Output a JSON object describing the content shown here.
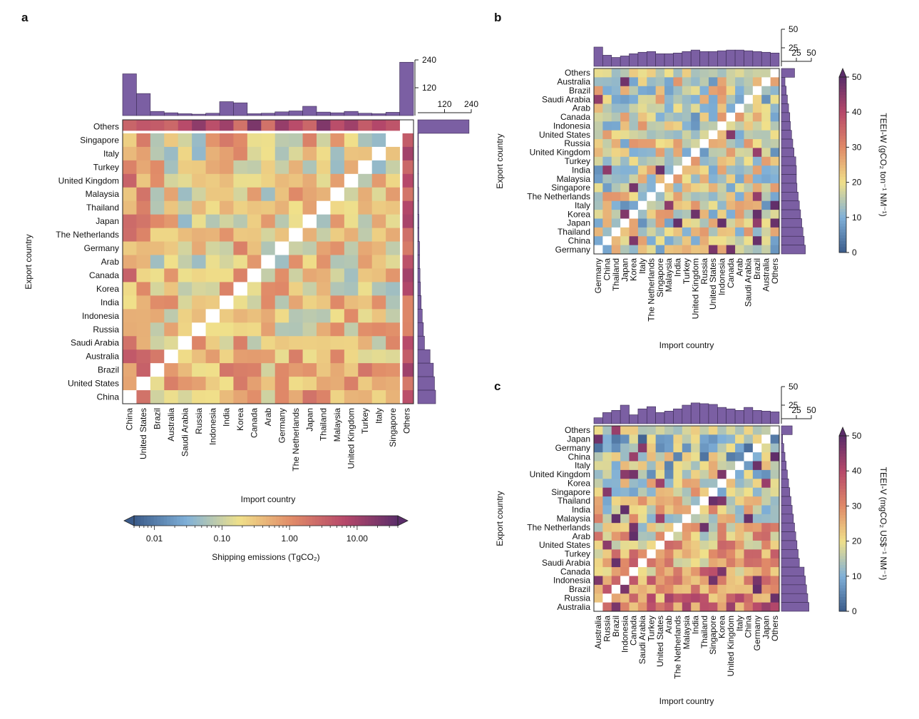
{
  "colors": {
    "scale": [
      "#3b5b8a",
      "#7fb0d8",
      "#f0e08a",
      "#e08a68",
      "#b6486a",
      "#5b2d6a"
    ],
    "marginal_bar": "#7b5fa3",
    "marginal_bar_stroke": "#3a2a52"
  },
  "chart_data": [
    {
      "panel_label": "a",
      "type": "heatmap",
      "log_color_scale": true,
      "color_range": [
        0.005,
        40
      ],
      "columns": [
        "China",
        "United States",
        "Brazil",
        "Australia",
        "Saudi Arabia",
        "Russia",
        "Indonesia",
        "India",
        "Korea",
        "Canada",
        "Arab",
        "Germany",
        "The Netherlands",
        "Japan",
        "Thailand",
        "Malaysia",
        "United Kingdom",
        "Turkey",
        "Italy",
        "Singapore",
        "Others"
      ],
      "rows": [
        "Others",
        "Singapore",
        "Italy",
        "Turkey",
        "United Kingdom",
        "Malaysia",
        "Thailand",
        "Japan",
        "The Netherlands",
        "Germany",
        "Arab",
        "Canada",
        "Korea",
        "India",
        "Indonesia",
        "Russia",
        "Saudi Arabia",
        "Australia",
        "Brazil",
        "United States",
        "China"
      ],
      "xlabel": "Import country",
      "ylabel": "Export country",
      "top_marginal": {
        "ticks": [
          120,
          240
        ],
        "range": [
          0,
          240
        ],
        "values": [
          180,
          95,
          18,
          12,
          8,
          6,
          10,
          60,
          55,
          8,
          10,
          16,
          20,
          40,
          15,
          12,
          18,
          10,
          8,
          14,
          230
        ]
      },
      "right_marginal": {
        "ticks": [
          120,
          240
        ],
        "range": [
          0,
          240
        ],
        "values": [
          230,
          3,
          3,
          3,
          3,
          4,
          4,
          5,
          5,
          8,
          8,
          10,
          12,
          15,
          20,
          25,
          30,
          55,
          70,
          75,
          80
        ]
      },
      "colorbar": {
        "title": "Shipping emissions (TgCO₂)",
        "tick_labels": [
          "0.01",
          "0.10",
          "1.00",
          "10.00"
        ],
        "ticks": [
          0.01,
          0.1,
          1,
          10
        ],
        "extend": "both"
      }
    },
    {
      "panel_label": "b",
      "type": "heatmap",
      "log_color_scale": false,
      "color_range": [
        0,
        50
      ],
      "columns": [
        "Germany",
        "China",
        "Thailand",
        "Japan",
        "Korea",
        "Italy",
        "The Netherlands",
        "Singapore",
        "Malaysia",
        "India",
        "Turkey",
        "United Kingdom",
        "Russia",
        "United States",
        "Indonesia",
        "Canada",
        "Arab",
        "Saudi Arabia",
        "Brazil",
        "Australia",
        "Others"
      ],
      "rows": [
        "Others",
        "Australia",
        "Brazil",
        "Saudi Arabia",
        "Arab",
        "Canada",
        "Indonesia",
        "United States",
        "Russia",
        "United Kingdom",
        "Turkey",
        "India",
        "Malaysia",
        "Singapore",
        "The Netherlands",
        "Italy",
        "Korea",
        "Japan",
        "Thailand",
        "China",
        "Germany"
      ],
      "xlabel": "Import country",
      "ylabel": "Export country",
      "top_marginal": {
        "ticks": [
          25,
          50
        ],
        "range": [
          0,
          50
        ],
        "values": [
          26,
          15,
          12,
          14,
          17,
          19,
          20,
          17,
          17,
          18,
          20,
          22,
          20,
          20,
          21,
          22,
          22,
          21,
          20,
          19,
          18
        ]
      },
      "right_marginal": {
        "ticks": [
          25,
          50
        ],
        "range": [
          0,
          50
        ],
        "values": [
          22,
          6,
          8,
          10,
          12,
          14,
          15,
          17,
          19,
          21,
          24,
          25,
          25,
          26,
          28,
          30,
          32,
          34,
          36,
          38,
          40
        ]
      },
      "colorbar": {
        "title": "TEEI-W (gCO₂ ton⁻¹ NM⁻¹)",
        "tick_labels": [
          "0",
          "10",
          "20",
          "30",
          "40",
          "50"
        ],
        "ticks": [
          0,
          10,
          20,
          30,
          40,
          50
        ],
        "extend": "max"
      }
    },
    {
      "panel_label": "c",
      "type": "heatmap",
      "log_color_scale": false,
      "color_range": [
        0,
        50
      ],
      "columns": [
        "Australia",
        "Russia",
        "Brazil",
        "Indonesia",
        "Canada",
        "Saudi Arabia",
        "Turkey",
        "United States",
        "Arab",
        "The Netherlands",
        "Malaysia",
        "India",
        "Thailand",
        "Singapore",
        "Korea",
        "United Kingdom",
        "Italy",
        "China",
        "Germany",
        "Japan",
        "Others"
      ],
      "rows": [
        "Others",
        "Japan",
        "Germany",
        "China",
        "Italy",
        "United Kingdom",
        "Korea",
        "Singapore",
        "Thailand",
        "India",
        "Malaysia",
        "The Netherlands",
        "Arab",
        "United States",
        "Turkey",
        "Saudi Arabia",
        "Canada",
        "Indonesia",
        "Brazil",
        "Russia",
        "Australia"
      ],
      "xlabel": "Import country",
      "ylabel": "Export country",
      "top_marginal": {
        "ticks": [
          25,
          50
        ],
        "range": [
          0,
          50
        ],
        "values": [
          8,
          15,
          18,
          25,
          12,
          20,
          23,
          15,
          17,
          20,
          25,
          28,
          27,
          26,
          22,
          20,
          18,
          22,
          18,
          17,
          16
        ]
      },
      "right_marginal": {
        "ticks": [
          25,
          50
        ],
        "range": [
          0,
          50
        ],
        "values": [
          18,
          2,
          4,
          6,
          8,
          10,
          12,
          14,
          16,
          18,
          20,
          22,
          24,
          26,
          28,
          30,
          38,
          40,
          42,
          44,
          46
        ]
      },
      "colorbar": {
        "title": "TEEI-V (mgCO₂ US$⁻¹ NM⁻¹)",
        "tick_labels": [
          "0",
          "10",
          "20",
          "30",
          "40",
          "50"
        ],
        "ticks": [
          0,
          10,
          20,
          30,
          40,
          50
        ],
        "extend": "max"
      }
    }
  ]
}
